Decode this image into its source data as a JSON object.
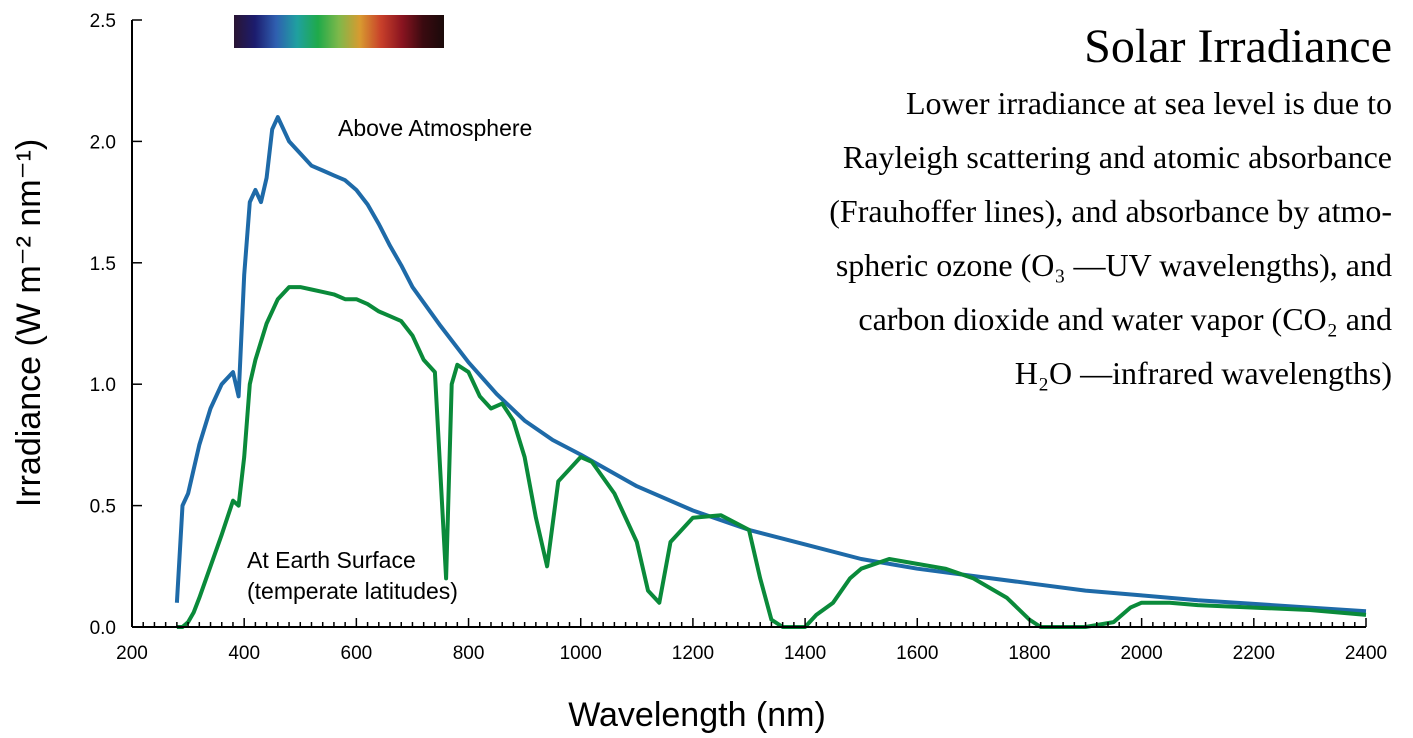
{
  "chart_data": {
    "type": "line",
    "title": "Solar Irradiance",
    "annotation_lines": [
      "Lower irradiance at sea level is due to",
      "Rayleigh scattering and atomic absorbance",
      "(Frauhoffer lines), and absorbance by atmo-",
      "spheric ozone (O₃ —UV wavelengths), and",
      "carbon dioxide and water vapor (CO₂ and",
      "H₂O —infrared wavelengths)"
    ],
    "xlabel": "Wavelength (nm)",
    "ylabel": "Irradiance (W m⁻² nm⁻¹)",
    "xlim": [
      200,
      2400
    ],
    "ylim": [
      0,
      2.5
    ],
    "x_ticks": [
      200,
      400,
      600,
      800,
      1000,
      1200,
      1400,
      1600,
      1800,
      2000,
      2200,
      2400
    ],
    "y_ticks": [
      0.0,
      0.5,
      1.0,
      1.5,
      2.0,
      2.5
    ],
    "y_tick_labels": [
      "0.0",
      "0.5",
      "1.0",
      "1.5",
      "2.0",
      "2.5"
    ],
    "grid": false,
    "legend": "none",
    "spectrum_bar_colors": [
      "#2a1533",
      "#1c1c6e",
      "#2f5fb0",
      "#1fa0a0",
      "#1faa4a",
      "#7fb84a",
      "#d89a30",
      "#c8402a",
      "#8a1420",
      "#3a0a10",
      "#1a0a0a"
    ],
    "series": [
      {
        "name": "Above Atmosphere",
        "color": "#1e6aa8",
        "x": [
          280,
          290,
          300,
          320,
          340,
          360,
          380,
          390,
          400,
          410,
          420,
          430,
          440,
          450,
          460,
          480,
          500,
          520,
          540,
          560,
          580,
          600,
          620,
          640,
          660,
          680,
          700,
          750,
          800,
          850,
          900,
          950,
          1000,
          1100,
          1200,
          1300,
          1400,
          1500,
          1600,
          1700,
          1800,
          1900,
          2000,
          2100,
          2200,
          2300,
          2400
        ],
        "y": [
          0.1,
          0.5,
          0.55,
          0.75,
          0.9,
          1.0,
          1.05,
          0.95,
          1.45,
          1.75,
          1.8,
          1.75,
          1.85,
          2.05,
          2.1,
          2.0,
          1.95,
          1.9,
          1.88,
          1.86,
          1.84,
          1.8,
          1.74,
          1.66,
          1.57,
          1.49,
          1.4,
          1.24,
          1.09,
          0.96,
          0.85,
          0.77,
          0.71,
          0.58,
          0.48,
          0.4,
          0.34,
          0.28,
          0.24,
          0.21,
          0.18,
          0.15,
          0.13,
          0.11,
          0.095,
          0.08,
          0.065
        ]
      },
      {
        "name": "At Earth Surface (temperate latitudes)",
        "color": "#0a8a3a",
        "x": [
          280,
          290,
          300,
          310,
          320,
          340,
          360,
          380,
          390,
          400,
          410,
          420,
          440,
          460,
          480,
          500,
          520,
          540,
          560,
          580,
          600,
          620,
          640,
          660,
          680,
          700,
          720,
          740,
          760,
          770,
          780,
          800,
          820,
          840,
          860,
          880,
          900,
          920,
          940,
          960,
          980,
          1000,
          1020,
          1060,
          1100,
          1120,
          1140,
          1160,
          1180,
          1200,
          1250,
          1300,
          1320,
          1340,
          1360,
          1380,
          1400,
          1420,
          1450,
          1480,
          1500,
          1550,
          1600,
          1650,
          1700,
          1760,
          1800,
          1820,
          1850,
          1900,
          1950,
          1980,
          2000,
          2050,
          2100,
          2200,
          2300,
          2400
        ],
        "y": [
          0.0,
          0.0,
          0.02,
          0.06,
          0.12,
          0.25,
          0.38,
          0.52,
          0.5,
          0.7,
          1.0,
          1.1,
          1.25,
          1.35,
          1.4,
          1.4,
          1.39,
          1.38,
          1.37,
          1.35,
          1.35,
          1.33,
          1.3,
          1.28,
          1.26,
          1.2,
          1.1,
          1.05,
          0.2,
          1.0,
          1.08,
          1.05,
          0.95,
          0.9,
          0.92,
          0.85,
          0.7,
          0.45,
          0.25,
          0.6,
          0.65,
          0.7,
          0.68,
          0.55,
          0.35,
          0.15,
          0.1,
          0.35,
          0.4,
          0.45,
          0.46,
          0.4,
          0.2,
          0.03,
          0.0,
          0.0,
          0.0,
          0.05,
          0.1,
          0.2,
          0.24,
          0.28,
          0.26,
          0.24,
          0.2,
          0.12,
          0.03,
          0.0,
          0.0,
          0.0,
          0.02,
          0.08,
          0.1,
          0.1,
          0.09,
          0.08,
          0.07,
          0.05
        ]
      }
    ]
  }
}
